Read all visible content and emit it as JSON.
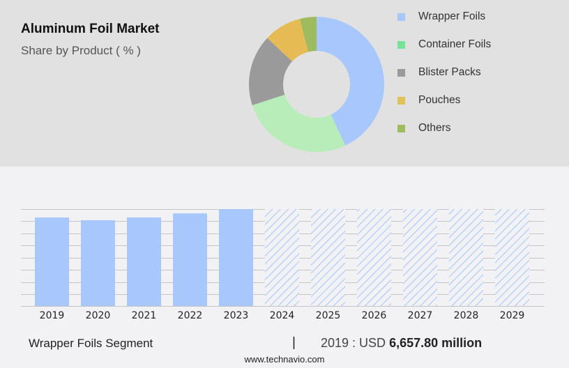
{
  "header": {
    "title": "Aluminum Foil Market",
    "subtitle": "Share by Product ( % )"
  },
  "legend": [
    {
      "label": "Wrapper Foils",
      "color": "#a8c8fd"
    },
    {
      "label": "Container Foils",
      "color": "#76e39a"
    },
    {
      "label": "Blister Packs",
      "color": "#9a9a9a"
    },
    {
      "label": "Pouches",
      "color": "#e0c25a"
    },
    {
      "label": "Others",
      "color": "#a0bc5e"
    }
  ],
  "footer": {
    "segment_label": "Wrapper Foils Segment",
    "separator": "|",
    "value_prefix": "2019 : USD ",
    "value_bold": "6,657.80 million",
    "url": "www.technavio.com"
  },
  "chart_data": [
    {
      "type": "pie",
      "title": "Aluminum Foil Market",
      "subtitle": "Share by Product ( % )",
      "donut": true,
      "categories": [
        "Wrapper Foils",
        "Container Foils",
        "Blister Packs",
        "Pouches",
        "Others"
      ],
      "values": [
        43,
        27,
        17,
        9,
        4
      ],
      "colors": [
        "#a8c8fd",
        "#b8edb9",
        "#9a9a9a",
        "#e7bb53",
        "#9fbb5f"
      ],
      "legend_position": "right"
    },
    {
      "type": "bar",
      "title": "Wrapper Foils Segment",
      "categories": [
        "2019",
        "2020",
        "2021",
        "2022",
        "2023",
        "2024",
        "2025",
        "2026",
        "2027",
        "2028",
        "2029"
      ],
      "values": [
        6657.8,
        6450,
        6660,
        6970,
        7290,
        null,
        null,
        null,
        null,
        null,
        null
      ],
      "forecast_years": [
        "2024",
        "2025",
        "2026",
        "2027",
        "2028",
        "2029"
      ],
      "forecast_style": "hatched",
      "annotation": "2019 : USD 6,657.80 million",
      "xlabel": "",
      "ylabel": "",
      "grid": true,
      "y_axis_labels_visible": false,
      "bar_color": "#a8c8fd"
    }
  ]
}
